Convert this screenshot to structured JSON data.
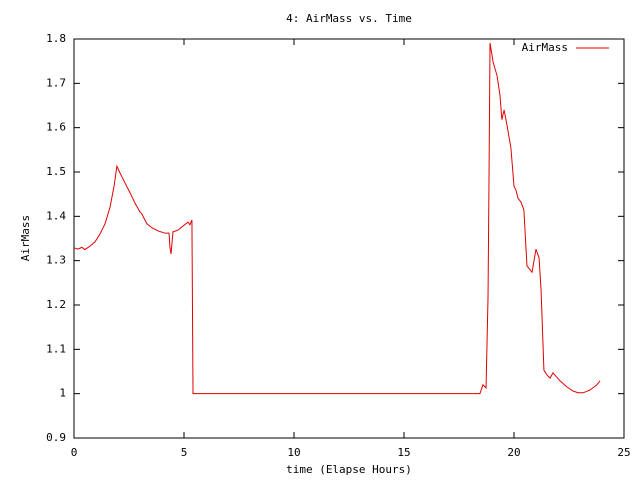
{
  "chart_data": {
    "type": "line",
    "title": "4: AirMass vs. Time",
    "x_label": "time (Elapse Hours)",
    "y_label": "AirMass",
    "xlim": [
      0,
      25
    ],
    "xticks": [
      0,
      5,
      10,
      15,
      20,
      25
    ],
    "ylim": [
      0.9,
      1.8
    ],
    "yticks": [
      0.9,
      1,
      1.1,
      1.2,
      1.3,
      1.4,
      1.5,
      1.6,
      1.7,
      1.8
    ],
    "legend": "upper right",
    "series": [
      {
        "name": "AirMass",
        "color": "#e00000",
        "x": [
          0,
          0.18,
          0.36,
          0.5,
          0.73,
          0.95,
          1.18,
          1.41,
          1.64,
          1.82,
          1.95,
          2.09,
          2.32,
          2.55,
          2.77,
          3.0,
          3.09,
          3.18,
          3.32,
          3.55,
          3.82,
          4.14,
          4.32,
          4.36,
          4.41,
          4.5,
          4.73,
          4.95,
          5.18,
          5.27,
          5.36,
          5.41,
          18.45,
          18.59,
          18.73,
          18.82,
          18.86,
          18.91,
          19.05,
          19.23,
          19.36,
          19.45,
          19.55,
          19.68,
          19.86,
          20.0,
          20.09,
          20.18,
          20.32,
          20.45,
          20.59,
          20.82,
          21.0,
          21.14,
          21.23,
          21.36,
          21.5,
          21.64,
          21.77,
          22.09,
          22.41,
          22.68,
          22.91,
          23.14,
          23.45,
          23.77,
          23.91
        ],
        "values": [
          1.329,
          1.326,
          1.33,
          1.325,
          1.333,
          1.342,
          1.36,
          1.383,
          1.421,
          1.468,
          1.513,
          1.498,
          1.475,
          1.453,
          1.43,
          1.41,
          1.405,
          1.396,
          1.383,
          1.374,
          1.367,
          1.362,
          1.362,
          1.331,
          1.315,
          1.365,
          1.369,
          1.378,
          1.387,
          1.381,
          1.392,
          1.0,
          1.0,
          1.02,
          1.013,
          1.22,
          1.46,
          1.791,
          1.748,
          1.717,
          1.674,
          1.618,
          1.64,
          1.606,
          1.554,
          1.468,
          1.459,
          1.441,
          1.432,
          1.414,
          1.288,
          1.274,
          1.326,
          1.306,
          1.234,
          1.053,
          1.042,
          1.035,
          1.047,
          1.029,
          1.015,
          1.006,
          1.002,
          1.002,
          1.008,
          1.02,
          1.029
        ]
      }
    ]
  }
}
